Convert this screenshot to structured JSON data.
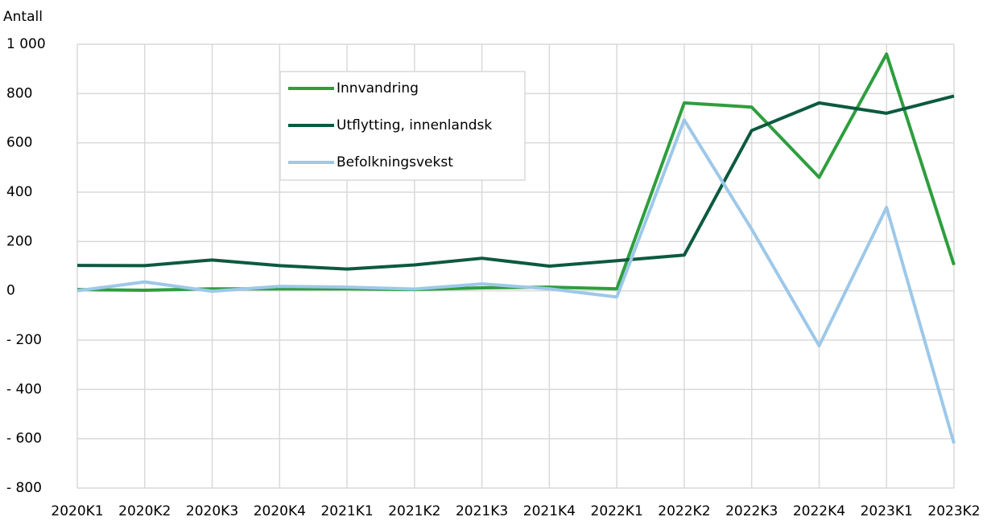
{
  "chart_data": {
    "type": "line",
    "y_label": "Antall",
    "categories": [
      "2020K1",
      "2020K2",
      "2020K3",
      "2020K4",
      "2021K1",
      "2021K2",
      "2021K3",
      "2021K4",
      "2022K1",
      "2022K2",
      "2022K3",
      "2022K4",
      "2023K1",
      "2023K2"
    ],
    "series": [
      {
        "name": "Innvandring",
        "color": "#2e9e3e",
        "values": [
          5,
          2,
          8,
          8,
          8,
          5,
          12,
          15,
          8,
          762,
          745,
          460,
          960,
          105
        ]
      },
      {
        "name": "Utflytting, innenlandsk",
        "color": "#0b5a3f",
        "values": [
          103,
          102,
          125,
          102,
          88,
          105,
          132,
          100,
          122,
          145,
          650,
          762,
          720,
          790
        ]
      },
      {
        "name": "Befolkningsvekst",
        "color": "#9dc8e8",
        "values": [
          0,
          36,
          -2,
          18,
          15,
          7,
          28,
          8,
          -25,
          693,
          250,
          -223,
          338,
          -619
        ]
      }
    ],
    "ylim": [
      -800,
      1000
    ],
    "yticks": [
      {
        "value": 1000,
        "label": "1 000"
      },
      800,
      600,
      400,
      200,
      0,
      {
        "value": -200,
        "label": "- 200"
      },
      {
        "value": -400,
        "label": "- 400"
      },
      {
        "value": -600,
        "label": "- 600"
      },
      {
        "value": -800,
        "label": "- 800"
      }
    ],
    "grid": true,
    "legend": "top-center"
  }
}
